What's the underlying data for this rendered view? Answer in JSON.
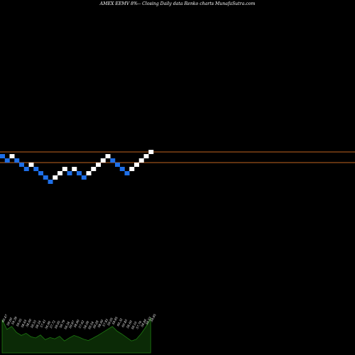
{
  "header": {
    "title": "AMEX EEMV 8%-- Closing Daily data Renko charts MunafaSutra.com"
  },
  "colors": {
    "background": "#000000",
    "up_brick": "#ffffff",
    "down_brick": "#1e6fe8",
    "reference_line": "#c0641f",
    "volume_fill": "#0b2a06",
    "volume_line": "#1d7a10",
    "text": "#ffffff"
  },
  "chart_data": {
    "type": "renko",
    "title": "AMEX EEMV 8%-- Closing Daily data Renko charts MunafaSutra.com",
    "bricks": [
      {
        "level": 0,
        "dir": "down"
      },
      {
        "level": -1,
        "dir": "down"
      },
      {
        "level": 0,
        "dir": "up"
      },
      {
        "level": -1,
        "dir": "down"
      },
      {
        "level": -2,
        "dir": "down"
      },
      {
        "level": -3,
        "dir": "down"
      },
      {
        "level": -2,
        "dir": "up"
      },
      {
        "level": -3,
        "dir": "down"
      },
      {
        "level": -4,
        "dir": "down"
      },
      {
        "level": -5,
        "dir": "down"
      },
      {
        "level": -6,
        "dir": "down"
      },
      {
        "level": -5,
        "dir": "up"
      },
      {
        "level": -4,
        "dir": "up"
      },
      {
        "level": -3,
        "dir": "up"
      },
      {
        "level": -4,
        "dir": "down"
      },
      {
        "level": -3,
        "dir": "up"
      },
      {
        "level": -4,
        "dir": "down"
      },
      {
        "level": -5,
        "dir": "down"
      },
      {
        "level": -4,
        "dir": "up"
      },
      {
        "level": -3,
        "dir": "up"
      },
      {
        "level": -2,
        "dir": "up"
      },
      {
        "level": -1,
        "dir": "up"
      },
      {
        "level": 0,
        "dir": "up"
      },
      {
        "level": -1,
        "dir": "down"
      },
      {
        "level": -2,
        "dir": "down"
      },
      {
        "level": -3,
        "dir": "down"
      },
      {
        "level": -4,
        "dir": "down"
      },
      {
        "level": -3,
        "dir": "up"
      },
      {
        "level": -2,
        "dir": "up"
      },
      {
        "level": -1,
        "dir": "up"
      },
      {
        "level": 0,
        "dir": "up"
      },
      {
        "level": 1,
        "dir": "up"
      }
    ],
    "reference_lines": [
      {
        "level": 1
      },
      {
        "level": -1.5
      }
    ],
    "volume_labels": [
      "60.47",
      "59.60",
      "59.39",
      "59.05",
      "58.63",
      "58.60",
      "58.55",
      "58.16",
      "57.41",
      "56.90",
      "57.72",
      "59.05",
      "58.79",
      "58.34",
      "59.97",
      "58.80",
      "57.62",
      "58.00",
      "58.54",
      "59.28",
      "58.60",
      "57.81",
      "59.05",
      "59.85",
      "60.32",
      "60.85",
      "58.60",
      "58.16",
      "57.70",
      "58.46",
      "59.53",
      "59.85"
    ],
    "volume_values": [
      0.78,
      0.55,
      0.62,
      0.48,
      0.41,
      0.46,
      0.38,
      0.35,
      0.42,
      0.31,
      0.36,
      0.33,
      0.39,
      0.28,
      0.35,
      0.41,
      0.37,
      0.32,
      0.29,
      0.35,
      0.41,
      0.48,
      0.55,
      0.62,
      0.51,
      0.44,
      0.36,
      0.28,
      0.32,
      0.45,
      0.61,
      0.82
    ]
  }
}
